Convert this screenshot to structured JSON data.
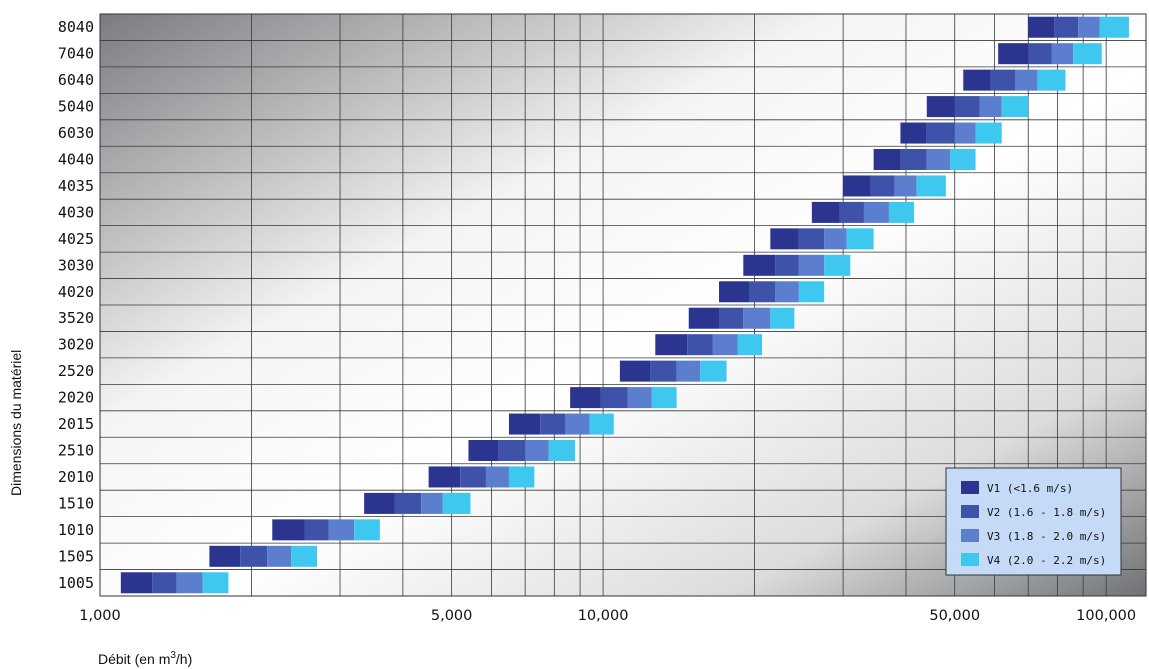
{
  "chart_data": {
    "type": "bar",
    "orientation": "horizontal",
    "style": "stacked-range",
    "x_scale": "log",
    "xlim": [
      1000,
      120000
    ],
    "xlabel": "Débit (en m³/h)",
    "xlabel_parts": {
      "main": "Débit  (en m",
      "sup": "3",
      "end": "/h)"
    },
    "ylabel": "Dimensions du matériel",
    "x_tick_labels": [
      {
        "value": 1000,
        "label": "1,000"
      },
      {
        "value": 5000,
        "label": "5,000"
      },
      {
        "value": 10000,
        "label": "10,000"
      },
      {
        "value": 50000,
        "label": "50,000"
      },
      {
        "value": 100000,
        "label": "100,000"
      }
    ],
    "x_gridlines": [
      1000,
      2000,
      3000,
      4000,
      5000,
      6000,
      7000,
      8000,
      9000,
      10000,
      20000,
      30000,
      40000,
      50000,
      60000,
      70000,
      80000,
      90000,
      100000
    ],
    "grid": true,
    "legend_position": "bottom-right",
    "series": [
      {
        "name": "V1 (<1.6 m/s)",
        "color": "#2b3590"
      },
      {
        "name": "V2 (1.6 - 1.8 m/s)",
        "color": "#3d52a8"
      },
      {
        "name": "V3 (1.8 - 2.0 m/s)",
        "color": "#5b7fce"
      },
      {
        "name": "V4 (2.0 - 2.2 m/s)",
        "color": "#3ec8f0"
      }
    ],
    "categories": [
      "8040",
      "7040",
      "6040",
      "5040",
      "6030",
      "4040",
      "4035",
      "4030",
      "4025",
      "3030",
      "4020",
      "3520",
      "3020",
      "2520",
      "2020",
      "2015",
      "2510",
      "2010",
      "1510",
      "1010",
      "1505",
      "1005"
    ],
    "ranges": [
      [
        70000,
        79000,
        88000,
        97000,
        111000
      ],
      [
        61000,
        70000,
        78000,
        86000,
        98000
      ],
      [
        52000,
        59000,
        66000,
        73000,
        83000
      ],
      [
        44000,
        50000,
        56000,
        62000,
        70000
      ],
      [
        39000,
        44000,
        50000,
        55000,
        62000
      ],
      [
        34500,
        39000,
        44000,
        49000,
        55000
      ],
      [
        30000,
        34000,
        38000,
        42000,
        48000
      ],
      [
        26000,
        29500,
        33000,
        37000,
        41500
      ],
      [
        21500,
        24500,
        27500,
        30500,
        34500
      ],
      [
        19000,
        22000,
        24500,
        27500,
        31000
      ],
      [
        17000,
        19500,
        22000,
        24500,
        27500
      ],
      [
        14800,
        17000,
        19000,
        21500,
        24000
      ],
      [
        12700,
        14700,
        16500,
        18500,
        20700
      ],
      [
        10800,
        12400,
        14000,
        15600,
        17600
      ],
      [
        8600,
        9900,
        11200,
        12500,
        14000
      ],
      [
        6500,
        7500,
        8400,
        9400,
        10500
      ],
      [
        5400,
        6200,
        7000,
        7800,
        8800
      ],
      [
        4500,
        5200,
        5850,
        6500,
        7300
      ],
      [
        3350,
        3850,
        4350,
        4800,
        5450
      ],
      [
        2200,
        2550,
        2850,
        3200,
        3600
      ],
      [
        1650,
        1900,
        2150,
        2400,
        2700
      ],
      [
        1100,
        1270,
        1420,
        1600,
        1800
      ]
    ]
  }
}
